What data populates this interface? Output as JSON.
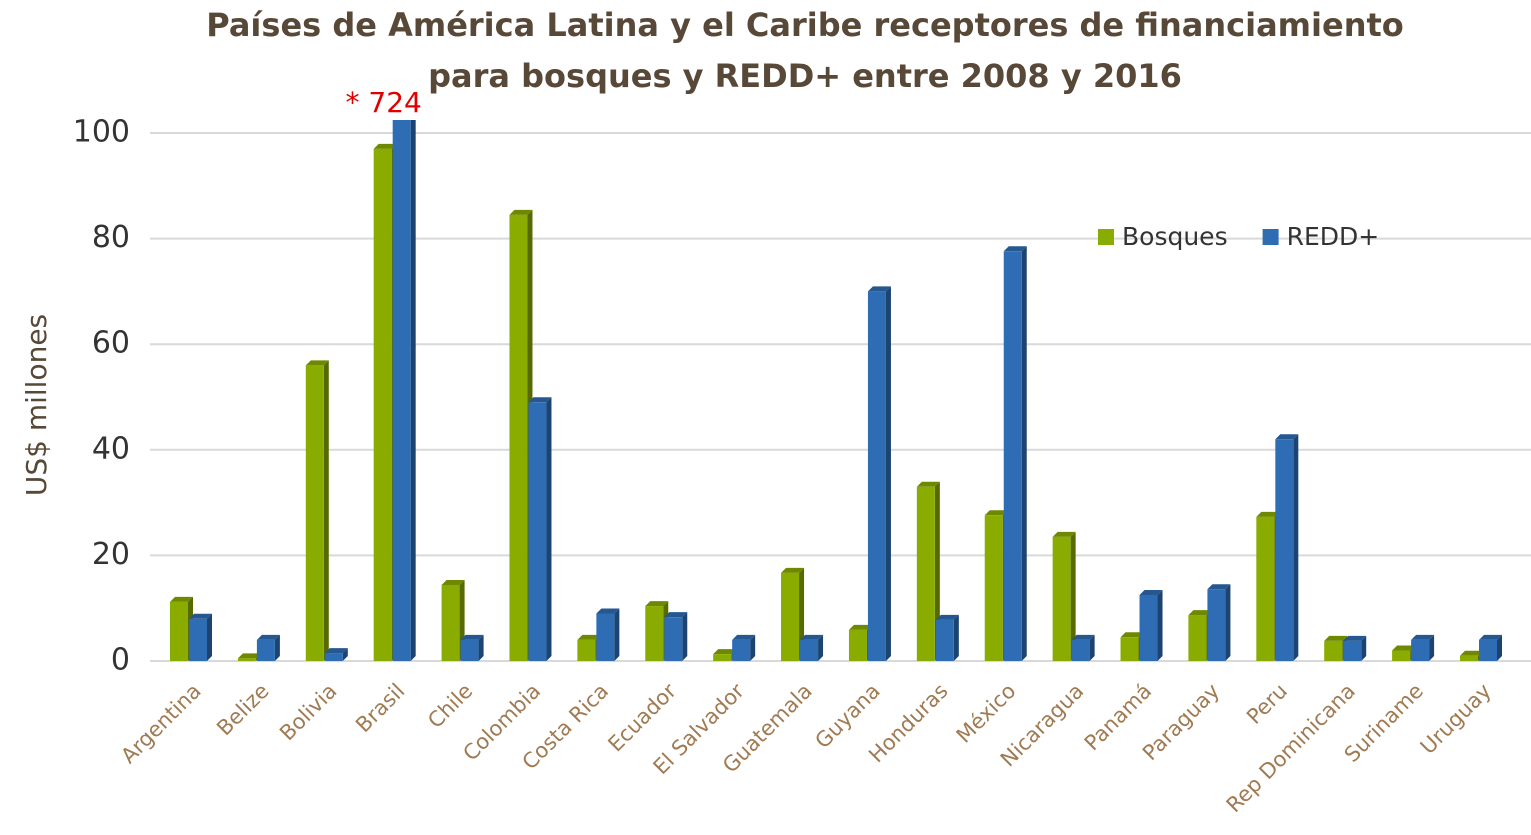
{
  "chart_data": {
    "type": "bar3d",
    "title": [
      "Países de América Latina y el Caribe receptores de financiamiento",
      "para bosques y REDD+ entre 2008 y 2016"
    ],
    "y_label": "US$ millones",
    "categories": [
      "Argentina",
      "Belize",
      "Bolivia",
      "Brasil",
      "Chile",
      "Colombia",
      "Costa Rica",
      "Ecuador",
      "El Salvador",
      "Guatemala",
      "Guyana",
      "Honduras",
      "México",
      "Nicaragua",
      "Panamá",
      "Paraguay",
      "Peru",
      "Rep Dominicana",
      "Suriname",
      "Uruguay"
    ],
    "series": [
      {
        "name": "Bosques",
        "color": "#8aab00",
        "values": [
          11.2,
          0.5,
          56,
          97,
          14.4,
          84.5,
          4,
          10.4,
          1.3,
          16.7,
          5.9,
          33,
          27.6,
          23.5,
          4.5,
          8.7,
          27.3,
          3.8,
          2,
          1
        ]
      },
      {
        "name": "REDD+",
        "color": "#2e6db4",
        "values": [
          8,
          4,
          1.5,
          724,
          4,
          49,
          9,
          8.3,
          4,
          4,
          70,
          7.8,
          77.6,
          4,
          12.5,
          13.6,
          42,
          3.8,
          4,
          4
        ],
        "value_labels": [
          null,
          null,
          null,
          "* 724",
          null,
          null,
          null,
          null,
          null,
          null,
          null,
          null,
          null,
          null,
          null,
          null,
          null,
          null,
          null,
          null
        ]
      }
    ],
    "ylim": [
      0,
      100
    ],
    "yticks": [
      0,
      20,
      40,
      60,
      80,
      100
    ],
    "grid": true,
    "legend": "upper right"
  }
}
